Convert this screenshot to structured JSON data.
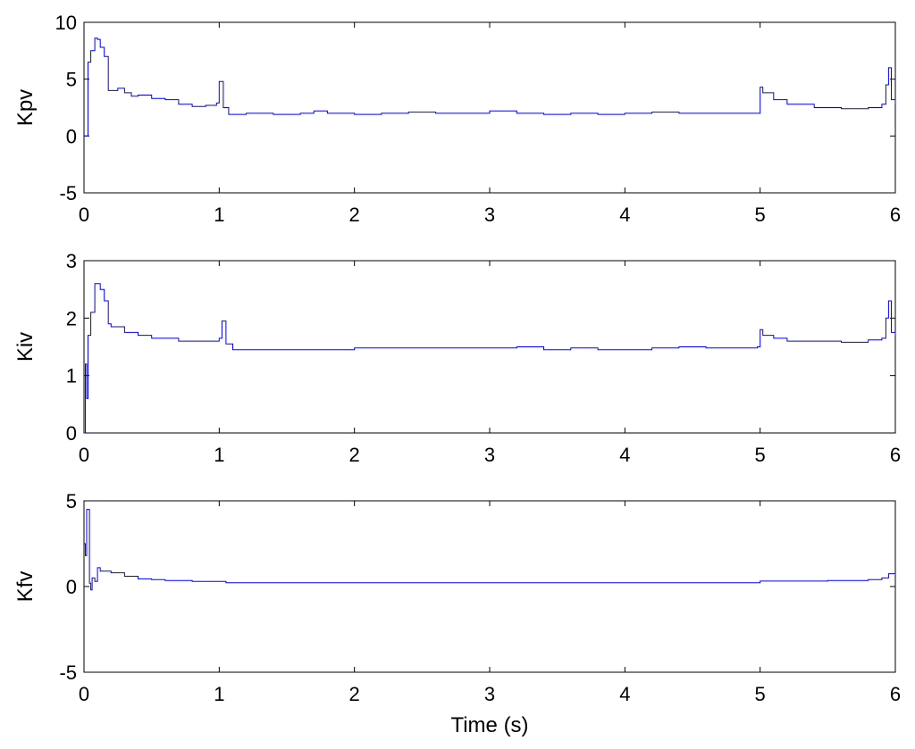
{
  "figure": {
    "xlabel": "Time (s)",
    "line_color": "#0000ff"
  },
  "chart_data": [
    {
      "type": "line",
      "title": "",
      "xlabel": "",
      "ylabel": "Kpv",
      "xlim": [
        0,
        6
      ],
      "ylim": [
        -5,
        10
      ],
      "xticks": [
        "0",
        "1",
        "2",
        "3",
        "4",
        "5",
        "6"
      ],
      "yticks": [
        "-5",
        "0",
        "5",
        "10"
      ],
      "grid": false,
      "series": [
        {
          "x": [
            0,
            0.02,
            0.03,
            0.05,
            0.08,
            0.1,
            0.12,
            0.15,
            0.18,
            0.2,
            0.25,
            0.3,
            0.35,
            0.4,
            0.5,
            0.6,
            0.7,
            0.8,
            0.9,
            0.98,
            1.0,
            1.03,
            1.07,
            1.2,
            1.4,
            1.6,
            1.7,
            1.8,
            2.0,
            2.2,
            2.4,
            2.6,
            2.8,
            3.0,
            3.2,
            3.4,
            3.6,
            3.8,
            4.0,
            4.2,
            4.4,
            4.6,
            4.8,
            4.98,
            5.0,
            5.02,
            5.1,
            5.2,
            5.4,
            5.6,
            5.8,
            5.9,
            5.93,
            5.95,
            5.97,
            6.0
          ],
          "y": [
            0,
            0,
            6.5,
            7.5,
            8.6,
            8.5,
            7.8,
            7.0,
            4.0,
            4.0,
            4.2,
            3.8,
            3.5,
            3.6,
            3.3,
            3.2,
            2.8,
            2.6,
            2.7,
            2.9,
            4.8,
            2.5,
            1.9,
            2.0,
            1.9,
            2.0,
            2.2,
            2.0,
            1.9,
            2.0,
            2.1,
            2.0,
            2.0,
            2.2,
            2.0,
            1.9,
            2.0,
            1.9,
            2.0,
            2.1,
            2.0,
            2.0,
            2.0,
            2.0,
            4.3,
            3.8,
            3.2,
            2.8,
            2.5,
            2.4,
            2.5,
            2.8,
            4.5,
            6.0,
            3.2,
            2.8
          ]
        }
      ]
    },
    {
      "type": "line",
      "title": "",
      "xlabel": "",
      "ylabel": "Kiv",
      "xlim": [
        0,
        6
      ],
      "ylim": [
        0,
        3
      ],
      "xticks": [
        "0",
        "1",
        "2",
        "3",
        "4",
        "5",
        "6"
      ],
      "yticks": [
        "0",
        "1",
        "2",
        "3"
      ],
      "grid": false,
      "series": [
        {
          "x": [
            0,
            0.01,
            0.02,
            0.03,
            0.05,
            0.08,
            0.1,
            0.12,
            0.15,
            0.18,
            0.2,
            0.3,
            0.4,
            0.5,
            0.6,
            0.7,
            0.8,
            0.9,
            1.0,
            1.02,
            1.05,
            1.1,
            1.3,
            1.5,
            1.7,
            1.9,
            2.0,
            2.2,
            2.4,
            2.6,
            2.8,
            3.0,
            3.2,
            3.4,
            3.6,
            3.8,
            4.0,
            4.2,
            4.4,
            4.6,
            4.8,
            4.98,
            5.0,
            5.02,
            5.1,
            5.2,
            5.4,
            5.6,
            5.8,
            5.9,
            5.93,
            5.95,
            5.97,
            6.0
          ],
          "y": [
            0,
            1.2,
            0.6,
            1.7,
            2.1,
            2.6,
            2.6,
            2.5,
            2.3,
            1.9,
            1.85,
            1.75,
            1.7,
            1.65,
            1.65,
            1.6,
            1.6,
            1.6,
            1.65,
            1.95,
            1.55,
            1.45,
            1.45,
            1.45,
            1.45,
            1.45,
            1.48,
            1.48,
            1.48,
            1.48,
            1.48,
            1.48,
            1.5,
            1.45,
            1.48,
            1.45,
            1.45,
            1.48,
            1.5,
            1.48,
            1.48,
            1.5,
            1.8,
            1.7,
            1.65,
            1.6,
            1.6,
            1.58,
            1.62,
            1.65,
            2.0,
            2.3,
            1.75,
            1.7
          ]
        }
      ]
    },
    {
      "type": "line",
      "title": "",
      "xlabel": "Time (s)",
      "ylabel": "Kfv",
      "xlim": [
        0,
        6
      ],
      "ylim": [
        -5,
        5
      ],
      "xticks": [
        "0",
        "1",
        "2",
        "3",
        "4",
        "5",
        "6"
      ],
      "yticks": [
        "-5",
        "0",
        "5"
      ],
      "grid": false,
      "series": [
        {
          "x": [
            0,
            0.01,
            0.02,
            0.03,
            0.04,
            0.05,
            0.06,
            0.08,
            0.1,
            0.12,
            0.15,
            0.2,
            0.3,
            0.4,
            0.5,
            0.6,
            0.8,
            1.0,
            1.05,
            1.5,
            2.0,
            3.0,
            4.0,
            4.98,
            5.0,
            5.2,
            5.5,
            5.8,
            5.9,
            5.95,
            6.0
          ],
          "y": [
            2.5,
            1.8,
            4.5,
            4.5,
            0.2,
            -0.2,
            0.5,
            0.3,
            1.1,
            0.9,
            0.9,
            0.8,
            0.6,
            0.45,
            0.4,
            0.35,
            0.3,
            0.3,
            0.22,
            0.22,
            0.22,
            0.22,
            0.22,
            0.22,
            0.32,
            0.32,
            0.35,
            0.4,
            0.5,
            0.75,
            0.7
          ]
        }
      ]
    }
  ]
}
